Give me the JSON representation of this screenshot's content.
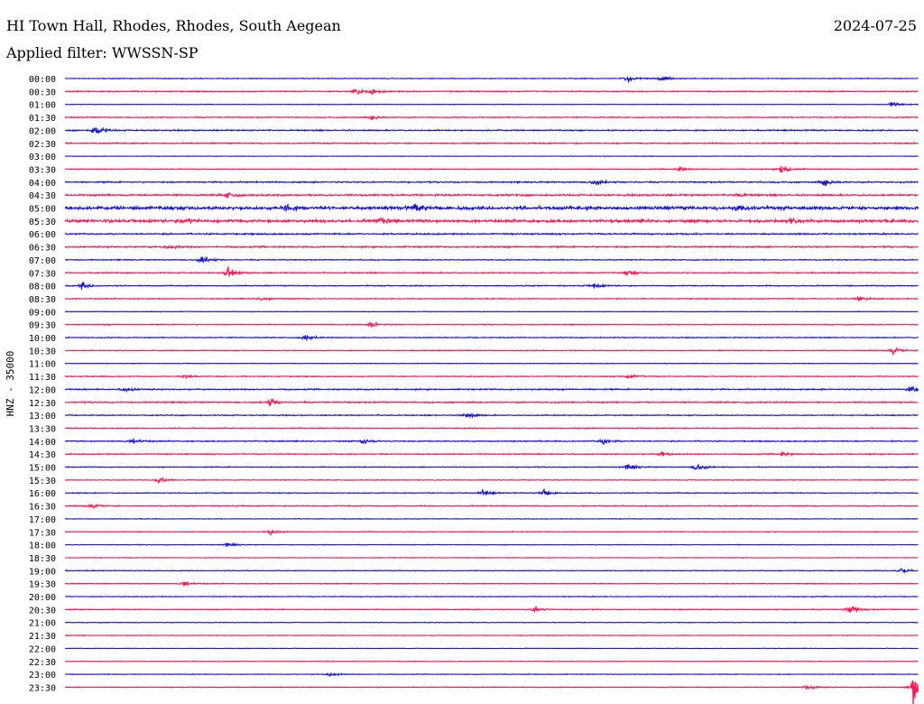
{
  "header": {
    "station": "HI Town Hall, Rhodes, Rhodes, South Aegean",
    "date": "2024-07-25",
    "filter_prefix": "Applied filter:",
    "filter": "WWSSN-SP"
  },
  "colors": {
    "even": "#1414e0",
    "odd": "#ff1450",
    "text": "#000000"
  },
  "chart_data": {
    "type": "line",
    "subtype": "helicorder",
    "ylabel": "HNZ - 35000",
    "rows": [
      "00:00",
      "00:30",
      "01:00",
      "01:30",
      "02:00",
      "02:30",
      "03:00",
      "03:30",
      "04:00",
      "04:30",
      "05:00",
      "05:30",
      "06:00",
      "06:30",
      "07:00",
      "07:30",
      "08:00",
      "08:30",
      "09:00",
      "09:30",
      "10:00",
      "10:30",
      "11:00",
      "11:30",
      "12:00",
      "12:30",
      "13:00",
      "13:30",
      "14:00",
      "14:30",
      "15:00",
      "15:30",
      "16:00",
      "16:30",
      "17:00",
      "17:30",
      "18:00",
      "18:30",
      "19:00",
      "19:30",
      "20:00",
      "20:30",
      "21:00",
      "21:30",
      "22:00",
      "22:30",
      "23:00",
      "23:30"
    ],
    "row_noise": [
      0.06,
      0.09,
      0.05,
      0.08,
      0.1,
      0.1,
      0.04,
      0.07,
      0.11,
      0.14,
      0.26,
      0.22,
      0.12,
      0.12,
      0.08,
      0.09,
      0.08,
      0.08,
      0.05,
      0.07,
      0.07,
      0.07,
      0.05,
      0.08,
      0.1,
      0.11,
      0.08,
      0.08,
      0.09,
      0.09,
      0.07,
      0.06,
      0.07,
      0.08,
      0.05,
      0.06,
      0.05,
      0.05,
      0.06,
      0.07,
      0.06,
      0.07,
      0.05,
      0.05,
      0.04,
      0.05,
      0.05,
      0.06
    ],
    "events": [
      {
        "row": "00:00",
        "x": 0.66,
        "amp": 0.6
      },
      {
        "row": "00:00",
        "x": 0.7,
        "amp": 0.5
      },
      {
        "row": "00:30",
        "x": 0.34,
        "amp": 0.6
      },
      {
        "row": "00:30",
        "x": 0.36,
        "amp": 0.4
      },
      {
        "row": "01:00",
        "x": 0.97,
        "amp": 0.5
      },
      {
        "row": "01:30",
        "x": 0.36,
        "amp": 0.4
      },
      {
        "row": "02:00",
        "x": 0.035,
        "amp": 1.0
      },
      {
        "row": "03:30",
        "x": 0.72,
        "amp": 0.5
      },
      {
        "row": "03:30",
        "x": 0.84,
        "amp": 0.9
      },
      {
        "row": "04:00",
        "x": 0.62,
        "amp": 0.6
      },
      {
        "row": "04:00",
        "x": 0.89,
        "amp": 0.7
      },
      {
        "row": "04:30",
        "x": 0.19,
        "amp": 0.5
      },
      {
        "row": "04:30",
        "x": 0.79,
        "amp": 0.4
      },
      {
        "row": "05:00",
        "x": 0.26,
        "amp": 0.6
      },
      {
        "row": "05:00",
        "x": 0.41,
        "amp": 0.6
      },
      {
        "row": "05:00",
        "x": 0.79,
        "amp": 0.7
      },
      {
        "row": "05:30",
        "x": 0.14,
        "amp": 0.5
      },
      {
        "row": "05:30",
        "x": 0.37,
        "amp": 0.5
      },
      {
        "row": "05:30",
        "x": 0.85,
        "amp": 0.4
      },
      {
        "row": "06:30",
        "x": 0.12,
        "amp": 0.4
      },
      {
        "row": "07:00",
        "x": 0.16,
        "amp": 0.8
      },
      {
        "row": "07:30",
        "x": 0.19,
        "amp": 0.9
      },
      {
        "row": "07:30",
        "x": 0.66,
        "amp": 0.5
      },
      {
        "row": "08:00",
        "x": 0.02,
        "amp": 0.7
      },
      {
        "row": "08:00",
        "x": 0.62,
        "amp": 0.5
      },
      {
        "row": "08:30",
        "x": 0.23,
        "amp": 0.4
      },
      {
        "row": "08:30",
        "x": 0.93,
        "amp": 0.5
      },
      {
        "row": "09:30",
        "x": 0.36,
        "amp": 0.5
      },
      {
        "row": "10:00",
        "x": 0.28,
        "amp": 0.7
      },
      {
        "row": "10:30",
        "x": 0.97,
        "amp": 0.8
      },
      {
        "row": "11:30",
        "x": 0.14,
        "amp": 0.4
      },
      {
        "row": "11:30",
        "x": 0.66,
        "amp": 0.5
      },
      {
        "row": "12:00",
        "x": 0.07,
        "amp": 0.5
      },
      {
        "row": "12:00",
        "x": 0.99,
        "amp": 0.6
      },
      {
        "row": "12:30",
        "x": 0.24,
        "amp": 0.6
      },
      {
        "row": "13:00",
        "x": 0.47,
        "amp": 0.7
      },
      {
        "row": "14:00",
        "x": 0.08,
        "amp": 0.5
      },
      {
        "row": "14:00",
        "x": 0.35,
        "amp": 0.5
      },
      {
        "row": "14:00",
        "x": 0.63,
        "amp": 0.6
      },
      {
        "row": "14:30",
        "x": 0.7,
        "amp": 0.5
      },
      {
        "row": "14:30",
        "x": 0.84,
        "amp": 0.4
      },
      {
        "row": "15:00",
        "x": 0.66,
        "amp": 0.6
      },
      {
        "row": "15:00",
        "x": 0.74,
        "amp": 0.8
      },
      {
        "row": "15:30",
        "x": 0.11,
        "amp": 0.5
      },
      {
        "row": "16:00",
        "x": 0.49,
        "amp": 0.6
      },
      {
        "row": "16:00",
        "x": 0.56,
        "amp": 0.7
      },
      {
        "row": "16:30",
        "x": 0.03,
        "amp": 0.5
      },
      {
        "row": "17:30",
        "x": 0.24,
        "amp": 0.6
      },
      {
        "row": "18:00",
        "x": 0.19,
        "amp": 0.4
      },
      {
        "row": "19:00",
        "x": 0.98,
        "amp": 0.5
      },
      {
        "row": "19:30",
        "x": 0.14,
        "amp": 0.5
      },
      {
        "row": "20:30",
        "x": 0.55,
        "amp": 0.6
      },
      {
        "row": "20:30",
        "x": 0.92,
        "amp": 0.8
      },
      {
        "row": "23:00",
        "x": 0.31,
        "amp": 0.5
      },
      {
        "row": "23:30",
        "x": 0.87,
        "amp": 0.5
      },
      {
        "row": "23:30",
        "x": 0.995,
        "amp": 3.5
      }
    ]
  }
}
